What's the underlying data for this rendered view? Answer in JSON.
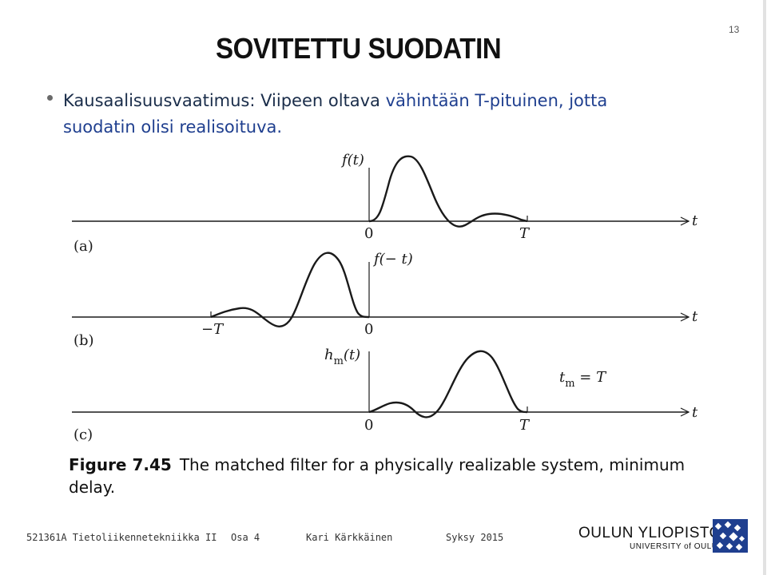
{
  "slide": {
    "title": "SOVITETTU SUODATIN",
    "number": "13"
  },
  "bullet": {
    "line1_part1": "Kausaalisuusvaatimus: Viipeen oltava ",
    "line1_part2": "vähintään T-pituinen, jotta",
    "line2": "suodatin olisi realisoituva."
  },
  "figure": {
    "panel_a": {
      "label": "(a)",
      "fn": "f(t)",
      "zero": "0",
      "end": "T",
      "axis": "t"
    },
    "panel_b": {
      "label": "(b)",
      "fn": "f(− t)",
      "zero": "0",
      "end": "−T",
      "axis": "t"
    },
    "panel_c": {
      "label": "(c)",
      "fn": "h",
      "fn_sub": "m",
      "fn_arg": "(t)",
      "zero": "0",
      "end": "T",
      "axis": "t",
      "note": "t",
      "note_sub": "m",
      "note_rest": " = T"
    },
    "caption_label": "Figure 7.45",
    "caption_text": "The matched filter for a physically realizable system, minimum delay."
  },
  "footer": {
    "course": "521361A Tietoliikennetekniikka II",
    "part": "Osa 4",
    "author": "Kari Kärkkäinen",
    "term": "Syksy 2015"
  },
  "logo": {
    "main": "OULUN YLIOPISTO",
    "sub": "UNIVERSITY of OULU",
    "color": "#1f3f8f"
  }
}
